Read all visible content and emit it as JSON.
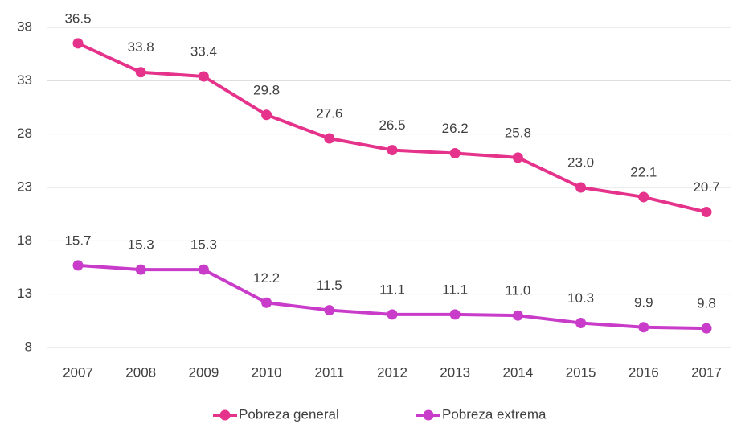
{
  "chart_data": {
    "type": "line",
    "categories": [
      "2007",
      "2008",
      "2009",
      "2010",
      "2011",
      "2012",
      "2013",
      "2014",
      "2015",
      "2016",
      "2017"
    ],
    "series": [
      {
        "name": "Pobreza general",
        "color": "#e5338b",
        "values": [
          36.5,
          33.8,
          33.4,
          29.8,
          27.6,
          26.5,
          26.2,
          25.8,
          23.0,
          22.1,
          20.7
        ],
        "value_labels": [
          "36.5",
          "33.8",
          "33.4",
          "29.8",
          "27.6",
          "26.5",
          "26.2",
          "25.8",
          "23.0",
          "22.1",
          "20.7"
        ]
      },
      {
        "name": "Pobreza extrema",
        "color": "#c83cc9",
        "values": [
          15.7,
          15.3,
          15.3,
          12.2,
          11.5,
          11.1,
          11.1,
          11.0,
          10.3,
          9.9,
          9.8
        ],
        "value_labels": [
          "15.7",
          "15.3",
          "15.3",
          "12.2",
          "11.5",
          "11.1",
          "11.1",
          "11.0",
          "10.3",
          "9.9",
          "9.8"
        ]
      }
    ],
    "ylim": [
      8,
      38
    ],
    "yticks": [
      8,
      13,
      18,
      23,
      28,
      33,
      38
    ],
    "grid": true,
    "legend": "bottom"
  }
}
